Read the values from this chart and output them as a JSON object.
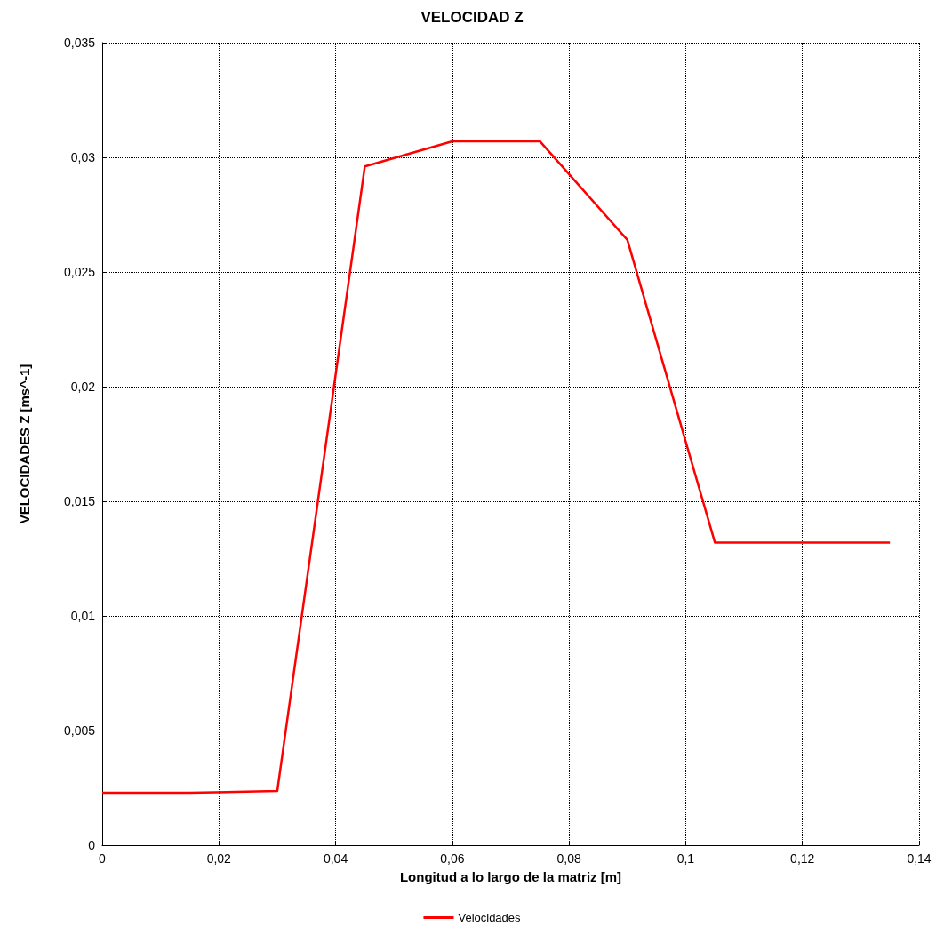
{
  "chart_data": {
    "type": "line",
    "title": "VELOCIDAD Z",
    "xlabel": "Longitud a lo largo de la matriz [m]",
    "ylabel": "VELOCIDADES Z [ms^-1]",
    "x": [
      0,
      0.015,
      0.03,
      0.045,
      0.06,
      0.075,
      0.09,
      0.105,
      0.12,
      0.135
    ],
    "series": [
      {
        "name": "Velocidades",
        "color": "#ff0000",
        "values": [
          0.00229,
          0.00229,
          0.00236,
          0.0296,
          0.0307,
          0.0307,
          0.0264,
          0.0132,
          0.0132,
          0.0132
        ]
      }
    ],
    "xlim": [
      0,
      0.14
    ],
    "xticks": [
      0,
      {
        "value": 0.02,
        "label": "0,02"
      },
      {
        "value": 0.04,
        "label": "0,04"
      },
      {
        "value": 0.06,
        "label": "0,06"
      },
      {
        "value": 0.08,
        "label": "0,08"
      },
      {
        "value": 0.1,
        "label": "0,1"
      },
      {
        "value": 0.12,
        "label": "0,12"
      },
      {
        "value": 0.14,
        "label": "0,14"
      }
    ],
    "ylim": [
      0,
      0.035
    ],
    "yticks": [
      0,
      {
        "value": 0.005,
        "label": "0,005"
      },
      {
        "value": 0.01,
        "label": "0,01"
      },
      {
        "value": 0.015,
        "label": "0,015"
      },
      {
        "value": 0.02,
        "label": "0,02"
      },
      {
        "value": 0.025,
        "label": "0,025"
      },
      {
        "value": 0.03,
        "label": "0,03"
      },
      {
        "value": 0.035,
        "label": "0,035"
      }
    ],
    "grid": true,
    "legend": "bottom",
    "marker": "none",
    "line_style": "solid"
  }
}
